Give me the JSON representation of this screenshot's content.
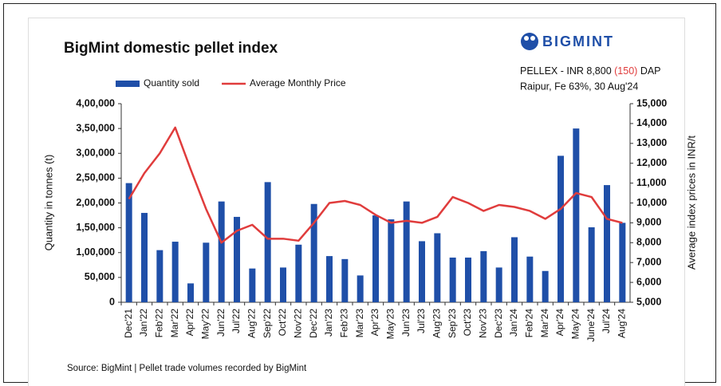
{
  "header": {
    "title": "BigMint domestic pellet index",
    "logo": "BIGMINT",
    "price_line": {
      "prefix": "PELLEX - INR 8,800",
      "change": "(150)",
      "suffix": "DAP"
    },
    "detail": "Raipur, Fe 63%, 30 Aug'24"
  },
  "chart_data": {
    "type": "bar_line",
    "categories": [
      "Dec'21",
      "Jan'22",
      "Feb'22",
      "Mar'22",
      "Apr'22",
      "May'22",
      "Jun'22",
      "Jul'22",
      "Aug'22",
      "Sep'22",
      "Oct'22",
      "Nov'22",
      "Dec'22",
      "Jan'23",
      "Feb'23",
      "Mar'23",
      "Apr'23",
      "May'23",
      "Jun'23",
      "Jul'23",
      "Aug'23",
      "Sep'23",
      "Oct'23",
      "Nov'23",
      "Dec'23",
      "Jan'24",
      "Feb'24",
      "Mar'24",
      "Apr'24",
      "May'24",
      "June'24",
      "Jul'24",
      "Aug'24"
    ],
    "series": [
      {
        "name": "Quantity sold",
        "type": "bar",
        "color": "#1f4fa8",
        "axis": "y",
        "values": [
          240000,
          180000,
          105000,
          122000,
          38000,
          120000,
          203000,
          172000,
          68000,
          242000,
          70000,
          116000,
          198000,
          93000,
          87000,
          54000,
          175000,
          167000,
          203000,
          123000,
          139000,
          90000,
          90000,
          103000,
          70000,
          131000,
          92000,
          63000,
          295000,
          350000,
          151000,
          236000,
          160000
        ]
      },
      {
        "name": "Average Monthly Price",
        "type": "line",
        "color": "#e03c3c",
        "axis": "y2",
        "values": [
          10200,
          11500,
          12500,
          13800,
          11700,
          9700,
          8000,
          8600,
          8900,
          8200,
          8200,
          8100,
          9000,
          10000,
          10100,
          9900,
          9400,
          9000,
          9100,
          9000,
          9300,
          10300,
          10000,
          9600,
          9900,
          9800,
          9600,
          9200,
          9700,
          10500,
          10300,
          9200,
          9000
        ]
      }
    ],
    "ylabel": "Quantity in tonnes (t)",
    "y2label": "Average index prices in INR/t",
    "ylim": [
      0,
      400000
    ],
    "yticks": [
      0,
      {
        "value": 50000,
        "label": "50,000"
      },
      {
        "value": 100000,
        "label": "1,00,000"
      },
      {
        "value": 150000,
        "label": "1,50,000"
      },
      {
        "value": 200000,
        "label": "2,00,000"
      },
      {
        "value": 250000,
        "label": "2,50,000"
      },
      {
        "value": 300000,
        "label": "3,00,000"
      },
      {
        "value": 350000,
        "label": "3,50,000"
      },
      {
        "value": 400000,
        "label": "4,00,000"
      }
    ],
    "y2lim": [
      5000,
      15000
    ],
    "y2ticks": [
      {
        "value": 5000,
        "label": "5,000"
      },
      {
        "value": 6000,
        "label": "6,000"
      },
      {
        "value": 7000,
        "label": "7,000"
      },
      {
        "value": 8000,
        "label": "8,000"
      },
      {
        "value": 9000,
        "label": "9,000"
      },
      {
        "value": 10000,
        "label": "10,000"
      },
      {
        "value": 11000,
        "label": "11,000"
      },
      {
        "value": 12000,
        "label": "12,000"
      },
      {
        "value": 13000,
        "label": "13,000"
      },
      {
        "value": 14000,
        "label": "14,000"
      },
      {
        "value": 15000,
        "label": "15,000"
      }
    ],
    "source": "Source: BigMint | Pellet trade volumes recorded by BigMint"
  }
}
